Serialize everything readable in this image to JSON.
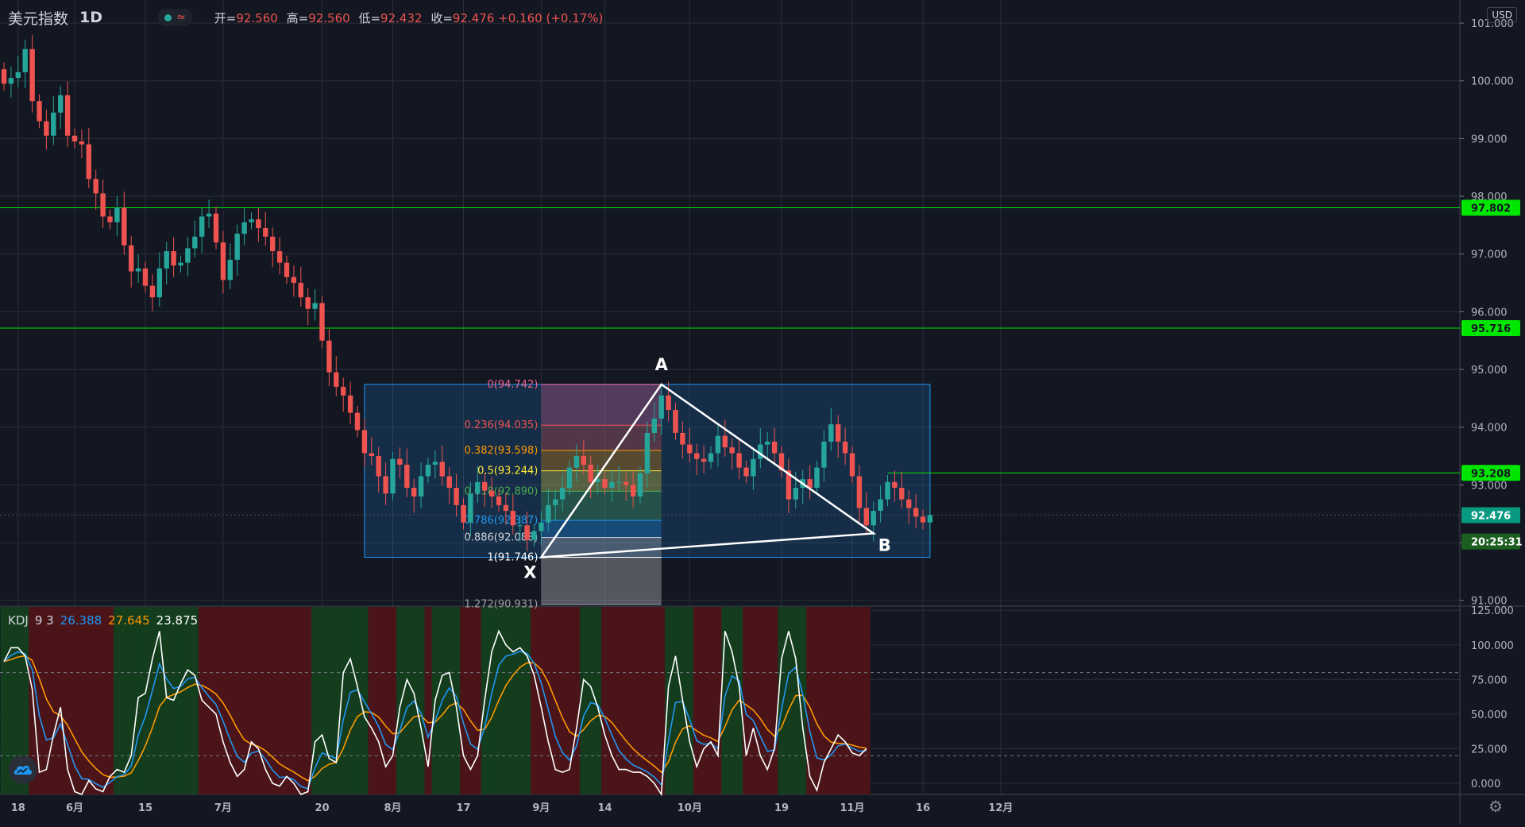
{
  "header": {
    "symbol": "美元指数",
    "interval": "1D",
    "ohlc": {
      "open_label": "开=",
      "open": "92.560",
      "high_label": "高=",
      "high": "92.560",
      "low_label": "低=",
      "low": "92.432",
      "close_label": "收=",
      "close": "92.476",
      "change": "+0.160",
      "change_pct": "(+0.17%)"
    }
  },
  "currency_label": "USD",
  "price_axis": {
    "ticks": [
      "101.000",
      "100.000",
      "99.000",
      "98.000",
      "97.000",
      "96.000",
      "95.000",
      "94.000",
      "93.000",
      "92.000",
      "91.000"
    ],
    "tick_values": [
      101,
      100,
      99,
      98,
      97,
      96,
      95,
      94,
      93,
      92,
      91
    ],
    "range": [
      90.9,
      101.4
    ],
    "badges": [
      {
        "text": "97.802",
        "value": 97.802,
        "color": "#00e600",
        "textColor": "#131722"
      },
      {
        "text": "95.716",
        "value": 95.716,
        "color": "#00e600",
        "textColor": "#131722"
      },
      {
        "text": "93.208",
        "value": 93.208,
        "color": "#00e600",
        "textColor": "#131722"
      },
      {
        "text": "92.476",
        "value": 92.476,
        "color": "#089981",
        "textColor": "#ffffff"
      },
      {
        "text": "20:25:31",
        "value": 92.02,
        "color": "#1b5e20",
        "textColor": "#ffffff"
      }
    ]
  },
  "time_axis": {
    "labels": [
      {
        "text": "18",
        "bar": 2
      },
      {
        "text": "6月",
        "bar": 10
      },
      {
        "text": "15",
        "bar": 20
      },
      {
        "text": "7月",
        "bar": 31
      },
      {
        "text": "20",
        "bar": 45
      },
      {
        "text": "8月",
        "bar": 55
      },
      {
        "text": "17",
        "bar": 65
      },
      {
        "text": "9月",
        "bar": 76
      },
      {
        "text": "14",
        "bar": 85
      },
      {
        "text": "10月",
        "bar": 97
      },
      {
        "text": "19",
        "bar": 110
      },
      {
        "text": "11月",
        "bar": 120
      },
      {
        "text": "16",
        "bar": 130
      },
      {
        "text": "12月",
        "bar": 141
      }
    ]
  },
  "horizontal_levels": [
    {
      "value": 97.802,
      "color": "#00e600"
    },
    {
      "value": 95.716,
      "color": "#00e600"
    }
  ],
  "ray": {
    "value": 93.208,
    "from_bar": 125,
    "color": "#00e600"
  },
  "fibonacci": {
    "levels": [
      {
        "label": "0(94.742)",
        "value": 94.742,
        "color": "#f06292"
      },
      {
        "label": "0.236(94.035)",
        "value": 94.035,
        "color": "#ef5350"
      },
      {
        "label": "0.382(93.598)",
        "value": 93.598,
        "color": "#ff9800"
      },
      {
        "label": "0.5(93.244)",
        "value": 93.244,
        "color": "#ffeb3b"
      },
      {
        "label": "0.618(92.890)",
        "value": 92.89,
        "color": "#4caf50"
      },
      {
        "label": "0.786(92.387)",
        "value": 92.387,
        "color": "#2196f3"
      },
      {
        "label": "0.886(92.088)",
        "value": 92.088,
        "color": "#d1d4dc"
      },
      {
        "label": "1(91.746)",
        "value": 91.746,
        "color": "#ffffff"
      },
      {
        "label": "1.272(90.931)",
        "value": 90.931,
        "color": "#9e9e9e"
      }
    ],
    "from_bar": 76,
    "to_bar": 93
  },
  "range_box": {
    "top": 94.742,
    "bottom": 91.746,
    "from_bar": 51,
    "to_bar": 131
  },
  "pattern": {
    "points": [
      {
        "label": "X",
        "bar": 76,
        "value": 91.746
      },
      {
        "label": "A",
        "bar": 93,
        "value": 94.742
      },
      {
        "label": "B",
        "bar": 123,
        "value": 92.16
      }
    ],
    "color": "#ffffff"
  },
  "kdj": {
    "name": "KDJ",
    "params": "9 3",
    "k_value": "26.388",
    "d_value": "27.645",
    "j_value": "23.875",
    "k_color": "#2196f3",
    "d_color": "#ff9800",
    "j_color": "#ffffff",
    "axis_ticks": [
      "125.000",
      "100.000",
      "75.000",
      "50.000",
      "25.000",
      "0.000"
    ],
    "axis_values": [
      125,
      100,
      75,
      50,
      25,
      0
    ],
    "range": [
      -8,
      128
    ],
    "dashed_levels": [
      80,
      20
    ]
  },
  "chart_data": {
    "type": "candlestick",
    "title": "美元指数 1D",
    "ylim": [
      90.9,
      101.4
    ],
    "close": [
      99.95,
      100.05,
      100.15,
      100.55,
      99.65,
      99.3,
      99.05,
      99.45,
      99.75,
      99.05,
      98.95,
      98.9,
      98.3,
      98.05,
      97.65,
      97.55,
      97.8,
      97.15,
      96.7,
      96.75,
      96.45,
      96.25,
      96.75,
      97.05,
      96.8,
      96.85,
      97.1,
      97.3,
      97.65,
      97.7,
      97.2,
      96.55,
      96.9,
      97.35,
      97.55,
      97.6,
      97.45,
      97.3,
      97.05,
      96.85,
      96.6,
      96.5,
      96.25,
      96.05,
      96.15,
      95.5,
      94.95,
      94.7,
      94.55,
      94.25,
      93.95,
      93.55,
      93.5,
      93.15,
      92.85,
      93.45,
      93.35,
      92.95,
      92.8,
      93.15,
      93.35,
      93.4,
      93.15,
      92.95,
      92.65,
      92.35,
      92.85,
      93.05,
      92.9,
      92.8,
      92.65,
      92.55,
      92.3,
      92.3,
      92.05,
      92.2,
      92.35,
      92.65,
      92.75,
      92.95,
      93.3,
      93.5,
      93.35,
      93.05,
      93.1,
      92.95,
      93.05,
      93.05,
      93.0,
      92.8,
      93.2,
      93.9,
      94.15,
      94.55,
      94.3,
      93.9,
      93.7,
      93.55,
      93.45,
      93.4,
      93.55,
      93.85,
      93.65,
      93.55,
      93.3,
      93.15,
      93.45,
      93.7,
      93.75,
      93.55,
      93.25,
      92.75,
      92.95,
      93.1,
      92.95,
      93.3,
      93.75,
      94.05,
      93.75,
      93.55,
      93.15,
      92.6,
      92.3,
      92.55,
      92.75,
      93.05,
      92.95,
      92.75,
      92.6,
      92.45,
      92.35,
      92.48
    ],
    "kdj": {
      "j": [
        88,
        98,
        98,
        92,
        68,
        8,
        10,
        35,
        55,
        10,
        -6,
        -8,
        2,
        -4,
        -6,
        5,
        10,
        8,
        20,
        62,
        65,
        90,
        110,
        62,
        60,
        72,
        82,
        78,
        60,
        55,
        50,
        30,
        15,
        5,
        10,
        30,
        25,
        10,
        0,
        -2,
        5,
        0,
        -8,
        -6,
        30,
        35,
        18,
        15,
        80,
        90,
        70,
        48,
        40,
        30,
        12,
        20,
        55,
        75,
        65,
        40,
        12,
        60,
        78,
        80,
        55,
        20,
        10,
        20,
        60,
        95,
        110,
        100,
        95,
        98,
        92,
        78,
        55,
        30,
        10,
        8,
        10,
        40,
        75,
        70,
        55,
        35,
        20,
        10,
        10,
        8,
        8,
        5,
        0,
        -8,
        70,
        92,
        60,
        30,
        12,
        25,
        30,
        20,
        110,
        95,
        70,
        20,
        40,
        20,
        10,
        25,
        90,
        110,
        90,
        40,
        5,
        -5,
        15,
        25,
        35,
        30,
        22,
        20,
        25
      ]
    }
  }
}
